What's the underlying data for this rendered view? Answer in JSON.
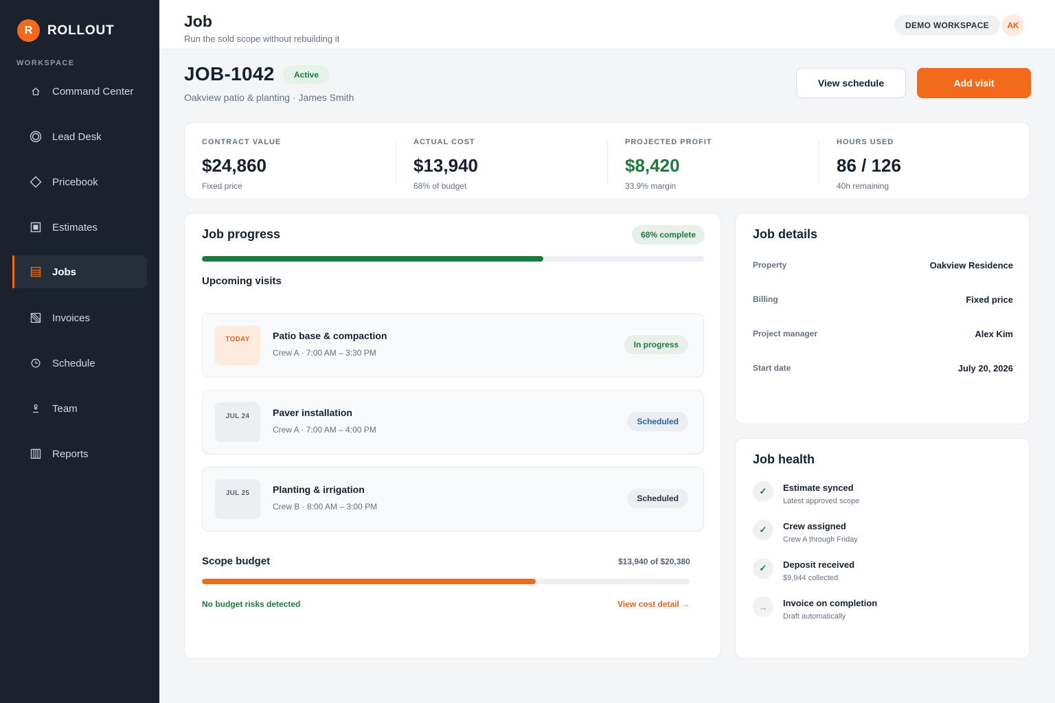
{
  "app": {
    "logo_letter": "R",
    "name": "ROLLOUT"
  },
  "sidebar": {
    "section_label": "WORKSPACE",
    "items": [
      {
        "label": "Command Center",
        "icon": "home-icon"
      },
      {
        "label": "Lead Desk",
        "icon": "target-icon"
      },
      {
        "label": "Pricebook",
        "icon": "diamond-icon"
      },
      {
        "label": "Estimates",
        "icon": "square-icon"
      },
      {
        "label": "Jobs",
        "icon": "list-icon",
        "active": true
      },
      {
        "label": "Invoices",
        "icon": "invoice-icon"
      },
      {
        "label": "Schedule",
        "icon": "clock-icon"
      },
      {
        "label": "Team",
        "icon": "person-icon"
      },
      {
        "label": "Reports",
        "icon": "columns-icon"
      }
    ]
  },
  "header": {
    "title": "Job",
    "subtitle": "Run the sold scope without rebuilding it",
    "workspace": "DEMO WORKSPACE",
    "avatar_initials": "AK"
  },
  "job": {
    "id": "JOB-1042",
    "status": "Active",
    "meta": "Oakview patio & planting · James Smith",
    "view_schedule_label": "View schedule",
    "add_visit_label": "Add visit"
  },
  "stats": [
    {
      "label": "CONTRACT VALUE",
      "value": "$24,860",
      "sub": "Fixed price"
    },
    {
      "label": "ACTUAL COST",
      "value": "$13,940",
      "sub": "68% of budget"
    },
    {
      "label": "PROJECTED PROFIT",
      "value": "$8,420",
      "sub": "33.9% margin"
    },
    {
      "label": "HOURS USED",
      "value": "86 / 126",
      "sub": "40h remaining"
    }
  ],
  "progress": {
    "title": "Job progress",
    "complete_label": "68% complete",
    "fraction": 0.68,
    "upcoming_title": "Upcoming visits",
    "visits": [
      {
        "date": "TODAY",
        "title": "Patio base & compaction",
        "sub": "Crew A · 7:00 AM – 3:30 PM",
        "status": "In progress"
      },
      {
        "date": "JUL 24",
        "title": "Paver installation",
        "sub": "Crew A · 7:00 AM – 4:00 PM",
        "status": "Scheduled"
      },
      {
        "date": "JUL 25",
        "title": "Planting & irrigation",
        "sub": "Crew B · 8:00 AM – 3:00 PM",
        "status": "Scheduled"
      }
    ],
    "budget_title": "Scope budget",
    "budget_amount": "$13,940 of $20,380",
    "budget_fraction": 0.684,
    "budget_risk": "No budget risks detected",
    "cost_link": "View cost detail →"
  },
  "details": {
    "title": "Job details",
    "rows": [
      {
        "label": "Property",
        "value": "Oakview Residence"
      },
      {
        "label": "Billing",
        "value": "Fixed price"
      },
      {
        "label": "Project manager",
        "value": "Alex Kim"
      },
      {
        "label": "Start date",
        "value": "July 20, 2026"
      }
    ]
  },
  "health": {
    "title": "Job health",
    "items": [
      {
        "title": "Estimate synced",
        "sub": "Latest approved scope",
        "done": true,
        "icon": "check-icon"
      },
      {
        "title": "Crew assigned",
        "sub": "Crew A through Friday",
        "done": true,
        "icon": "check-icon"
      },
      {
        "title": "Deposit received",
        "sub": "$9,944 collected",
        "done": true,
        "icon": "check-icon"
      },
      {
        "title": "Invoice on completion",
        "sub": "Draft automatically",
        "done": false,
        "icon": "arrow-right-icon"
      }
    ]
  },
  "colors": {
    "accent": "#f26b1d",
    "sidebar": "#1b222d",
    "success": "#1d7a3d",
    "progress": "#1d7a3d",
    "budget": "#f26b1d"
  }
}
